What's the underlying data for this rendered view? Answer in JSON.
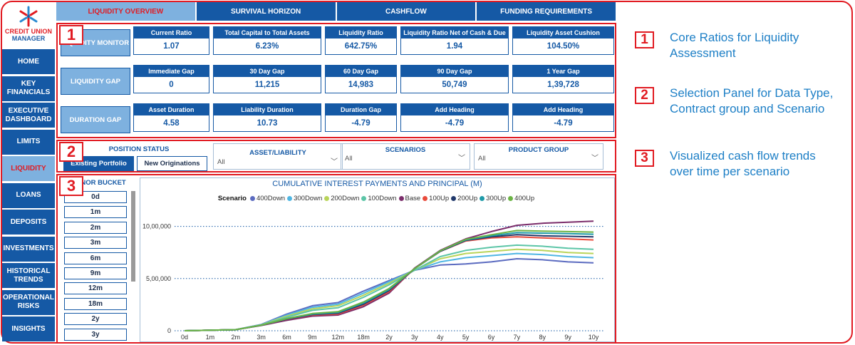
{
  "app": {
    "logo": {
      "line1": "CREDIT UNION",
      "line2": "MANAGER",
      "icon": "snowflake-logo-icon"
    }
  },
  "tabs": [
    {
      "label": "LIQUIDITY OVERVIEW",
      "active": true
    },
    {
      "label": "SURVIVAL HORIZON",
      "active": false
    },
    {
      "label": "CASHFLOW",
      "active": false
    },
    {
      "label": "FUNDING REQUIREMENTS",
      "active": false
    }
  ],
  "sidebar": {
    "items": [
      {
        "label": "HOME",
        "active": false
      },
      {
        "label": "KEY FINANCIALS",
        "active": false
      },
      {
        "label": "EXECUTIVE DASHBOARD",
        "active": false
      },
      {
        "label": "LIMITS",
        "active": false
      },
      {
        "label": "LIQUIDITY",
        "active": true
      },
      {
        "label": "LOANS",
        "active": false
      },
      {
        "label": "DEPOSITS",
        "active": false
      },
      {
        "label": "INVESTMENTS",
        "active": false
      },
      {
        "label": "HISTORICAL TRENDS",
        "active": false
      },
      {
        "label": "OPERATIONAL RISKS",
        "active": false
      },
      {
        "label": "INSIGHTS",
        "active": false
      }
    ]
  },
  "sections": {
    "s1_number": "1",
    "s2_number": "2",
    "s3_number": "3"
  },
  "rows": [
    {
      "label": "LIQUIDITY MONITOR",
      "cards": [
        {
          "title": "Current Ratio",
          "value": "1.07"
        },
        {
          "title": "Total Capital to Total Assets",
          "value": "6.23%"
        },
        {
          "title": "Liquidity Ratio",
          "value": "642.75%"
        },
        {
          "title": "Liquidity Ratio Net of Cash & Due",
          "value": "1.94"
        },
        {
          "title": "Liquidity Asset Cushion",
          "value": "104.50%"
        }
      ]
    },
    {
      "label": "LIQUIDITY GAP",
      "cards": [
        {
          "title": "Immediate Gap",
          "value": "0"
        },
        {
          "title": "30 Day Gap",
          "value": "11,215"
        },
        {
          "title": "60 Day Gap",
          "value": "14,983"
        },
        {
          "title": "90 Day Gap",
          "value": "50,749"
        },
        {
          "title": "1 Year Gap",
          "value": "1,39,728"
        }
      ]
    },
    {
      "label": "DURATION GAP",
      "cards": [
        {
          "title": "Asset Duration",
          "value": "4.58"
        },
        {
          "title": "Liability Duration",
          "value": "10.73"
        },
        {
          "title": "Duration Gap",
          "value": "-4.79"
        },
        {
          "title": "Add Heading",
          "value": "-4.79"
        },
        {
          "title": "Add Heading",
          "value": "-4.79"
        }
      ]
    }
  ],
  "filters": {
    "position_status": {
      "title": "POSITION STATUS",
      "options": [
        {
          "label": "Existing Portfolio",
          "selected": true
        },
        {
          "label": "New Originations",
          "selected": false
        }
      ]
    },
    "dropdowns": [
      {
        "title": "ASSET/LIABILITY",
        "value": "All"
      },
      {
        "title": "SCENARIOS",
        "value": "All"
      },
      {
        "title": "PRODUCT GROUP",
        "value": "All"
      }
    ]
  },
  "tenor": {
    "title": "TENOR BUCKET",
    "items": [
      "0d",
      "1m",
      "2m",
      "3m",
      "6m",
      "9m",
      "12m",
      "18m",
      "2y",
      "3y"
    ]
  },
  "chart_data": {
    "type": "line",
    "title": "CUMULATIVE INTEREST PAYMENTS AND PRINCIPAL (M)",
    "legend_title": "Scenario",
    "legend_position": "top",
    "xlabel": "",
    "ylabel": "",
    "x": [
      "0d",
      "1m",
      "2m",
      "3m",
      "6m",
      "9m",
      "12m",
      "18m",
      "2y",
      "3y",
      "4y",
      "5y",
      "6y",
      "7y",
      "8y",
      "9y",
      "10y"
    ],
    "y_ticks": [
      {
        "value": 0,
        "label": "0"
      },
      {
        "value": 500000,
        "label": "5,00,000"
      },
      {
        "value": 1000000,
        "label": "10,00,000"
      }
    ],
    "ylim": [
      0,
      1120000
    ],
    "grid": "dotted horizontal",
    "series": [
      {
        "name": "400Down",
        "color": "#5b6bc0",
        "values": [
          0,
          5000,
          10000,
          60000,
          160000,
          240000,
          270000,
          380000,
          480000,
          580000,
          630000,
          640000,
          660000,
          690000,
          680000,
          660000,
          650000
        ]
      },
      {
        "name": "300Down",
        "color": "#4fb6e3",
        "values": [
          0,
          5000,
          10000,
          58000,
          150000,
          225000,
          255000,
          360000,
          470000,
          580000,
          660000,
          700000,
          720000,
          740000,
          730000,
          710000,
          700000
        ]
      },
      {
        "name": "200Down",
        "color": "#b9d45a",
        "values": [
          0,
          5000,
          10000,
          56000,
          140000,
          210000,
          240000,
          340000,
          455000,
          580000,
          690000,
          740000,
          760000,
          780000,
          770000,
          750000,
          740000
        ]
      },
      {
        "name": "100Down",
        "color": "#5cc5a7",
        "values": [
          0,
          5000,
          10000,
          54000,
          130000,
          195000,
          220000,
          320000,
          440000,
          580000,
          710000,
          770000,
          800000,
          820000,
          810000,
          790000,
          780000
        ]
      },
      {
        "name": "Base",
        "color": "#7b2d6b",
        "values": [
          0,
          5000,
          10000,
          50000,
          100000,
          140000,
          150000,
          230000,
          360000,
          600000,
          770000,
          880000,
          950000,
          1010000,
          1030000,
          1040000,
          1050000
        ]
      },
      {
        "name": "100Up",
        "color": "#e94b3c",
        "values": [
          0,
          5000,
          10000,
          52000,
          110000,
          150000,
          160000,
          245000,
          375000,
          595000,
          760000,
          860000,
          890000,
          900000,
          890000,
          880000,
          870000
        ]
      },
      {
        "name": "200Up",
        "color": "#21396b",
        "values": [
          0,
          5000,
          10000,
          52000,
          112000,
          155000,
          168000,
          255000,
          385000,
          595000,
          760000,
          865000,
          900000,
          920000,
          910000,
          905000,
          900000
        ]
      },
      {
        "name": "300Up",
        "color": "#1f9aa8",
        "values": [
          0,
          5000,
          10000,
          53000,
          115000,
          160000,
          175000,
          265000,
          395000,
          595000,
          765000,
          870000,
          910000,
          940000,
          935000,
          930000,
          925000
        ]
      },
      {
        "name": "400Up",
        "color": "#6bb344",
        "values": [
          0,
          5000,
          10000,
          53000,
          117000,
          165000,
          182000,
          275000,
          405000,
          595000,
          765000,
          875000,
          920000,
          960000,
          955000,
          950000,
          945000
        ]
      }
    ]
  },
  "notes": [
    {
      "number": "1",
      "text": "Core Ratios for Liquidity Assessment"
    },
    {
      "number": "2",
      "text": "Selection Panel for Data Type, Contract group and Scenario"
    },
    {
      "number": "3",
      "text": "Visualized cash flow trends over time per scenario"
    }
  ],
  "colors": {
    "brand_blue": "#1559a5",
    "light_blue": "#7eb1df",
    "accent_red": "#e11b22",
    "note_text": "#1d7fc6"
  }
}
